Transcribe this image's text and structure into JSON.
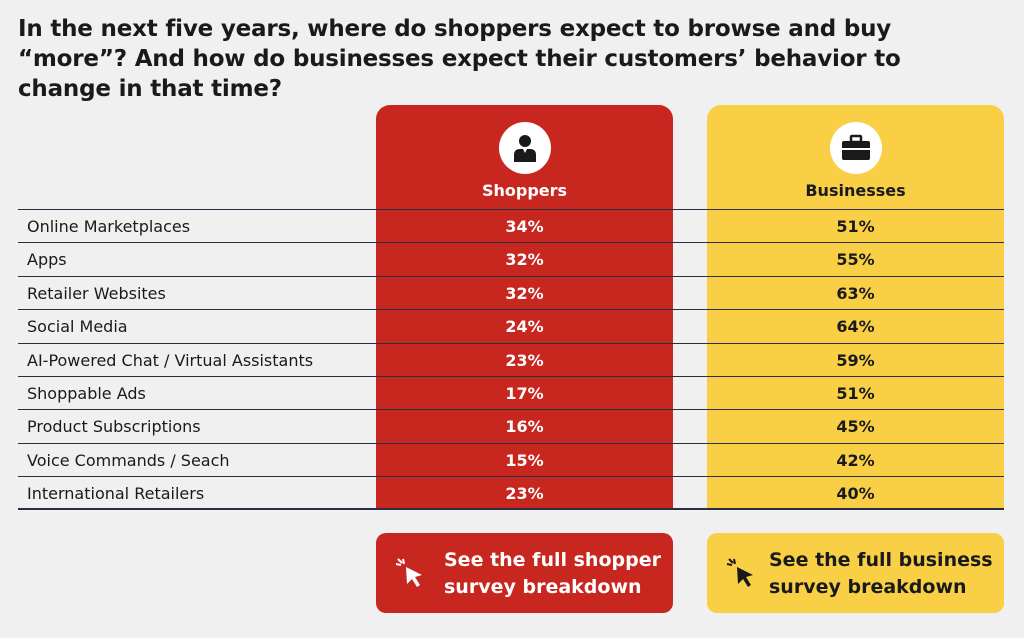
{
  "title": "In the next five years, where do shoppers expect to browse and buy “more”? And how do businesses expect their customers’ behavior to change in that time?",
  "columns": {
    "shoppers": {
      "label": "Shoppers",
      "icon": "person-icon",
      "color": "#c8271f"
    },
    "businesses": {
      "label": "Businesses",
      "icon": "briefcase-icon",
      "color": "#f8cf45"
    }
  },
  "chart_data": {
    "type": "table",
    "title": "In the next five years, where do shoppers expect to browse and buy “more”? And how do businesses expect their customers’ behavior to change in that time?",
    "categories": [
      "Online Marketplaces",
      "Apps",
      "Retailer Websites",
      "Social Media",
      "AI-Powered Chat / Virtual Assistants",
      "Shoppable Ads",
      "Product Subscriptions",
      "Voice Commands / Seach",
      "International Retailers"
    ],
    "series": [
      {
        "name": "Shoppers",
        "values": [
          "34%",
          "32%",
          "32%",
          "24%",
          "23%",
          "17%",
          "16%",
          "15%",
          "23%"
        ]
      },
      {
        "name": "Businesses",
        "values": [
          "51%",
          "55%",
          "63%",
          "64%",
          "59%",
          "51%",
          "45%",
          "42%",
          "40%"
        ]
      }
    ]
  },
  "cta": {
    "shopper_label": "See the full shopper survey breakdown",
    "business_label": "See the full business survey breakdown"
  }
}
